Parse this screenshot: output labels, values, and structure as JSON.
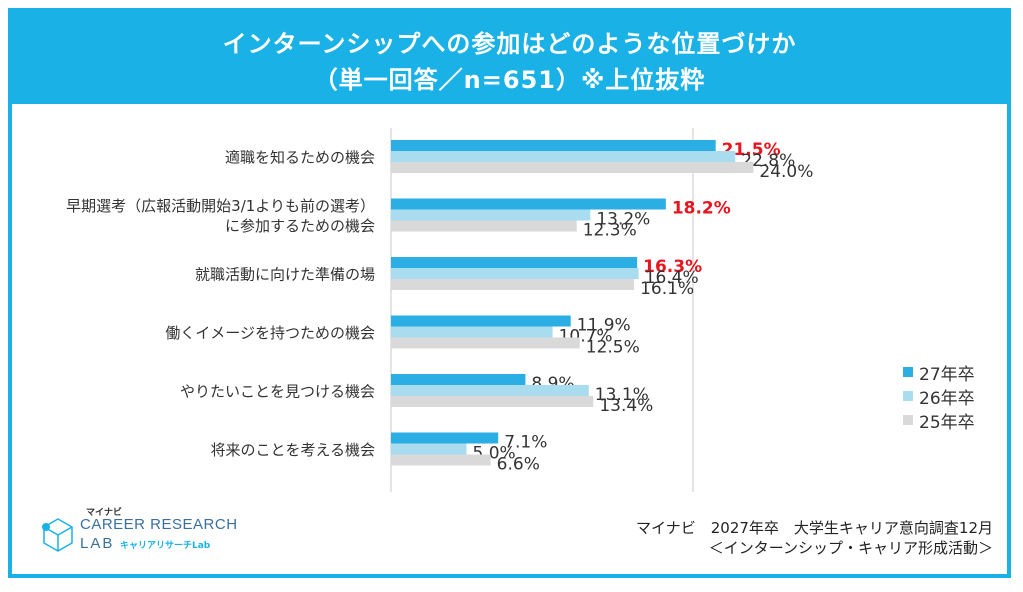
{
  "title": {
    "line1": "インターンシップへの参加はどのような位置づけか",
    "line2": "（単一回答／n=651）※上位抜粋"
  },
  "chart_data": {
    "type": "bar",
    "orientation": "horizontal",
    "categories": [
      [
        "適職を知るための機会"
      ],
      [
        "早期選考（広報活動開始3/1よりも前の選考）",
        "に参加するための機会"
      ],
      [
        "就職活動に向けた準備の場"
      ],
      [
        "働くイメージを持つための機会"
      ],
      [
        "やりたいことを見つける機会"
      ],
      [
        "将来のことを考える機会"
      ]
    ],
    "series": [
      {
        "name": "27年卒",
        "color": "#2aaee4",
        "values": [
          21.5,
          18.2,
          16.3,
          11.9,
          8.9,
          7.1
        ]
      },
      {
        "name": "26年卒",
        "color": "#a9dcef",
        "values": [
          22.8,
          13.2,
          16.4,
          10.7,
          13.1,
          5.0
        ]
      },
      {
        "name": "25年卒",
        "color": "#d9d9d9",
        "values": [
          24.0,
          12.3,
          16.1,
          12.5,
          13.4,
          6.6
        ]
      }
    ],
    "highlight": {
      "series": "27年卒",
      "categories_highlighted": [
        0,
        1,
        2
      ],
      "color": "#e8141e"
    },
    "label_suffix": "%",
    "xlim": [
      0,
      30
    ],
    "gridlines": [
      0,
      20
    ]
  },
  "legend": [
    "27年卒",
    "26年卒",
    "25年卒"
  ],
  "source": {
    "line1": "マイナビ　2027年卒　大学生キャリア意向調査12月",
    "line2": "＜インターンシップ・キャリア形成活動＞"
  },
  "logo": {
    "brand": "マイナビ",
    "line1": "CAREER RESEARCH",
    "line2": "LAB",
    "sub": "キャリアリサーチLab"
  }
}
